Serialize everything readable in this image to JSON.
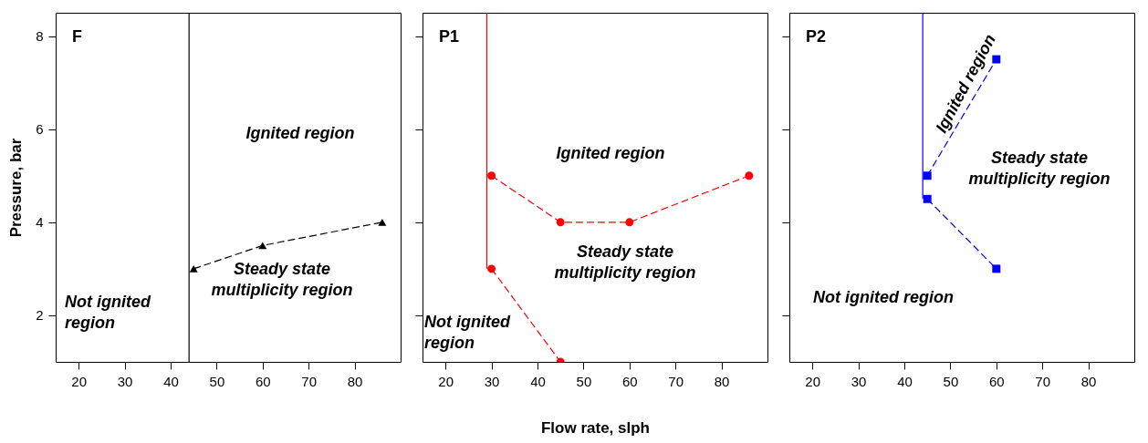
{
  "chart_data": [
    {
      "type": "line",
      "title": "F",
      "ylabel": "Pressure, bar",
      "xlim": [
        15,
        90
      ],
      "ylim": [
        1,
        8.5
      ],
      "xticks": [
        20,
        30,
        40,
        50,
        60,
        70,
        80
      ],
      "yticks": [
        2,
        4,
        6,
        8
      ],
      "grid": false,
      "series": [
        {
          "color": "#000000",
          "x": [
            45,
            60,
            86
          ],
          "values": [
            3,
            3.5,
            4
          ],
          "marker": "triangle",
          "line_style": "dashed"
        }
      ],
      "ref_lines": [
        {
          "axis": "x",
          "value": 44,
          "color": "#000000",
          "line_style": "solid"
        }
      ],
      "annotations": [
        "Ignited region",
        "Steady state\nmultiplicity region",
        "Not ignited\nregion"
      ]
    },
    {
      "type": "line",
      "title": "P1",
      "xlabel": "Flow rate, slph",
      "xlim": [
        15,
        90
      ],
      "ylim": [
        1,
        8.5
      ],
      "xticks": [
        20,
        30,
        40,
        50,
        60,
        70,
        80
      ],
      "yticks": [
        2,
        4,
        6,
        8
      ],
      "tick_labels": "x",
      "grid": false,
      "series": [
        {
          "color": "#ff0000",
          "x": [
            29,
            29
          ],
          "values": [
            8.5,
            3
          ],
          "marker": "none",
          "line_style": "solid"
        },
        {
          "color": "#ff0000",
          "x": [
            30,
            45,
            60,
            86
          ],
          "values": [
            5,
            4,
            4,
            5
          ],
          "marker": "circle",
          "line_style": "dashed"
        },
        {
          "color": "#ff0000",
          "x": [
            30,
            45
          ],
          "values": [
            3,
            1
          ],
          "marker": "circle",
          "line_style": "dashed"
        }
      ],
      "annotations": [
        "Ignited region",
        "Steady state\nmultiplicity region",
        "Not ignited\nregion"
      ]
    },
    {
      "type": "line",
      "title": "P2",
      "xlim": [
        15,
        90
      ],
      "ylim": [
        1,
        8.5
      ],
      "xticks": [
        20,
        30,
        40,
        50,
        60,
        70,
        80
      ],
      "yticks": [
        2,
        4,
        6,
        8
      ],
      "tick_labels": "x",
      "grid": false,
      "series": [
        {
          "color": "#0000ff",
          "x": [
            44,
            44
          ],
          "values": [
            8.5,
            4.5
          ],
          "marker": "none",
          "line_style": "solid"
        },
        {
          "color": "#0000ff",
          "x": [
            45,
            60
          ],
          "values": [
            5,
            7.5
          ],
          "marker": "square",
          "line_style": "dashed"
        },
        {
          "color": "#0000ff",
          "x": [
            45,
            60
          ],
          "values": [
            4.5,
            3
          ],
          "marker": "square",
          "line_style": "dashed"
        }
      ],
      "annotations": [
        "Ignited region",
        "Steady state\nmultiplicity region",
        "Not ignited region"
      ]
    }
  ]
}
